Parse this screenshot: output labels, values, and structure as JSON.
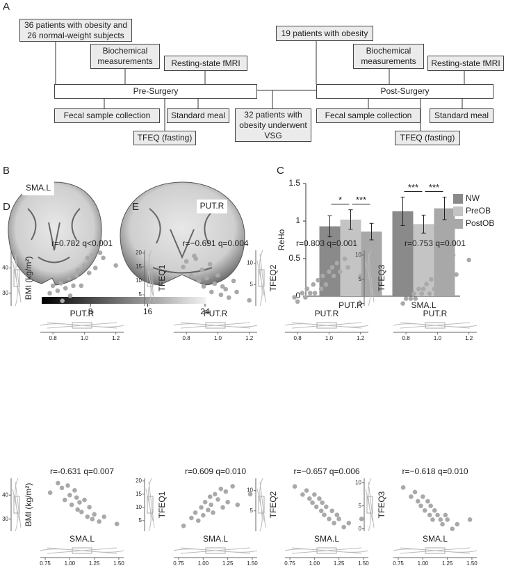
{
  "panel_labels": [
    "A",
    "B",
    "C",
    "D",
    "E"
  ],
  "diagram": {
    "nodes": [
      {
        "label": "36 patients with obesity and\n26 normal-weight subjects"
      },
      {
        "label": "Biochemical\nmeasurements"
      },
      {
        "label": "Resting-state fMRI"
      },
      {
        "label": "Pre-Surgery"
      },
      {
        "label": "Fecal sample collection"
      },
      {
        "label": "Standard meal"
      },
      {
        "label": "TFEQ (fasting)"
      },
      {
        "label": "32 patients with\nobesity underwent\nVSG"
      },
      {
        "label": "19 patients with obesity"
      },
      {
        "label": "Biochemical\nmeasurements"
      },
      {
        "label": "Resting-state fMRI"
      },
      {
        "label": "Post-Surgery"
      },
      {
        "label": "Fecal sample collection"
      },
      {
        "label": "TFEQ (fasting)"
      },
      {
        "label": "Standard meal"
      }
    ]
  },
  "brain": {
    "region_labels": [
      "SMA.L",
      "PUT.R"
    ],
    "colorbar": {
      "lim": [
        1.2,
        24.1
      ],
      "ticks": [
        8,
        16,
        24
      ]
    }
  },
  "chart_data": [
    {
      "type": "bar",
      "ylabel": "ReHo",
      "categories": [
        "PUT.R",
        "SMA.L"
      ],
      "series": [
        {
          "name": "NW",
          "color": "#8a8a8a",
          "values": [
            0.93,
            1.13
          ],
          "errors": [
            0.14,
            0.19
          ]
        },
        {
          "name": "PreOB",
          "color": "#c4c4c4",
          "values": [
            1.02,
            0.96
          ],
          "errors": [
            0.13,
            0.12
          ]
        },
        {
          "name": "PostOB",
          "color": "#a8a8a8",
          "values": [
            0.86,
            1.17
          ],
          "errors": [
            0.11,
            0.15
          ]
        }
      ],
      "ylim": [
        0,
        1.5
      ],
      "yticks": [
        0,
        0.5,
        1,
        1.5
      ],
      "annotations": [
        "*",
        "***",
        "***",
        "***"
      ],
      "legend": "right"
    },
    {
      "type": "scatter",
      "annotation": "r=0.782 q<0.001",
      "xlabel": "PUT.R",
      "ylabel": "BMI (kg/m²)",
      "color": "#a9a9a9",
      "x": [
        0.78,
        0.8,
        0.83,
        0.85,
        0.86,
        0.88,
        0.9,
        0.91,
        0.93,
        0.95,
        0.96,
        0.98,
        1.0,
        1.02,
        1.03,
        1.05,
        1.07,
        1.1,
        1.12,
        1.2
      ],
      "y": [
        30,
        33,
        31,
        34,
        27,
        32,
        36,
        29,
        33,
        37,
        39,
        33,
        41,
        44,
        38,
        45,
        40,
        46,
        44,
        41
      ],
      "xlim": [
        0.72,
        1.25
      ],
      "xticks": [
        0.8,
        {
          "value": 1,
          "label": "1.0"
        },
        1.2
      ],
      "ylim": [
        25,
        47
      ],
      "yticks": [
        30,
        40
      ]
    },
    {
      "type": "scatter",
      "annotation": "r=−0.691 q=0.004",
      "xlabel": "PUT.R",
      "ylabel": "TFEQ1",
      "color": "#a9a9a9",
      "x": [
        0.78,
        0.8,
        0.83,
        0.85,
        0.86,
        0.88,
        0.9,
        0.91,
        0.93,
        0.95,
        0.96,
        0.98,
        1.0,
        1.02,
        1.03,
        1.05,
        1.07,
        1.1,
        1.12,
        1.2
      ],
      "y": [
        15,
        17,
        12,
        19,
        18,
        10,
        14,
        8,
        11,
        16,
        6,
        9,
        12,
        5,
        8,
        7,
        4,
        10,
        6,
        3
      ],
      "xlim": [
        0.72,
        1.25
      ],
      "xticks": [
        0.8,
        {
          "value": 1,
          "label": "1.0"
        },
        1.2
      ],
      "ylim": [
        1,
        21
      ],
      "yticks": [
        5,
        10,
        15,
        20
      ]
    },
    {
      "type": "scatter",
      "annotation": "r=0.803 q=0.001",
      "xlabel": "PUT.R",
      "ylabel": "TFEQ2",
      "color": "#a9a9a9",
      "x": [
        0.78,
        0.8,
        0.83,
        0.85,
        0.86,
        0.88,
        0.9,
        0.91,
        0.93,
        0.95,
        0.96,
        0.98,
        1.0,
        1.02,
        1.03,
        1.05,
        1.07,
        1.1,
        1.12,
        1.2
      ],
      "y": [
        2,
        1,
        3,
        2,
        4,
        3,
        5,
        3,
        6,
        4,
        7,
        5,
        8,
        9,
        7,
        10,
        8,
        11,
        9,
        7
      ],
      "xlim": [
        0.72,
        1.25
      ],
      "xticks": [
        0.8,
        {
          "value": 1,
          "label": "1.0"
        },
        1.2
      ],
      "ylim": [
        0,
        13
      ],
      "yticks": [
        5,
        10
      ]
    },
    {
      "type": "scatter",
      "annotation": "r=0.753 q=0.001",
      "xlabel": "PUT.R",
      "ylabel": "TFEQ3",
      "color": "#a9a9a9",
      "x": [
        0.78,
        0.8,
        0.83,
        0.85,
        0.86,
        0.88,
        0.9,
        0.91,
        0.93,
        0.95,
        0.96,
        0.98,
        1.0,
        1.02,
        1.03,
        1.05,
        1.07,
        1.1,
        1.12,
        1.2
      ],
      "y": [
        0,
        1,
        1,
        2,
        1,
        3,
        2,
        3,
        4,
        2,
        5,
        3,
        6,
        5,
        7,
        4,
        8,
        10,
        6,
        9
      ],
      "xlim": [
        0.72,
        1.25
      ],
      "xticks": [
        0.8,
        {
          "value": 1,
          "label": "1.0"
        },
        1.2
      ],
      "ylim": [
        -0.5,
        11
      ],
      "yticks": [
        0,
        5,
        10
      ]
    },
    {
      "type": "scatter",
      "annotation": "r=-0.631 q=0.007",
      "xlabel": "SMA.L",
      "ylabel": "BMI (kg/m²)",
      "color": "#a9a9a9",
      "x": [
        0.8,
        0.88,
        0.92,
        0.95,
        0.98,
        1.0,
        1.02,
        1.05,
        1.07,
        1.08,
        1.1,
        1.12,
        1.15,
        1.18,
        1.2,
        1.23,
        1.25,
        1.3,
        1.35,
        1.48
      ],
      "y": [
        41,
        45,
        43,
        38,
        44,
        40,
        36,
        42,
        39,
        34,
        37,
        33,
        38,
        31,
        35,
        30,
        32,
        29,
        31,
        28
      ],
      "xlim": [
        0.7,
        1.55
      ],
      "xticks": [
        {
          "value": 0.75,
          "label": "0.75"
        },
        {
          "value": 1,
          "label": "1.00"
        },
        {
          "value": 1.25,
          "label": "1.25"
        },
        {
          "value": 1.5,
          "label": "1.50"
        }
      ],
      "ylim": [
        25,
        47
      ],
      "yticks": [
        30,
        40
      ]
    },
    {
      "type": "scatter",
      "annotation": "r=0.609 q=0.010",
      "xlabel": "SMA.L",
      "ylabel": "TFEQ1",
      "color": "#a9a9a9",
      "x": [
        0.8,
        0.88,
        0.92,
        0.95,
        0.98,
        1.0,
        1.02,
        1.05,
        1.07,
        1.08,
        1.1,
        1.12,
        1.15,
        1.18,
        1.2,
        1.23,
        1.25,
        1.3,
        1.35,
        1.48
      ],
      "y": [
        3,
        6,
        8,
        5,
        10,
        7,
        12,
        9,
        14,
        11,
        8,
        15,
        13,
        17,
        10,
        16,
        12,
        18,
        11,
        15
      ],
      "xlim": [
        0.7,
        1.55
      ],
      "xticks": [
        {
          "value": 0.75,
          "label": "0.75"
        },
        {
          "value": 1,
          "label": "1.00"
        },
        {
          "value": 1.25,
          "label": "1.25"
        },
        {
          "value": 1.5,
          "label": "1.50"
        }
      ],
      "ylim": [
        1,
        21
      ],
      "yticks": [
        5,
        10,
        15,
        20
      ]
    },
    {
      "type": "scatter",
      "annotation": "r=−0.657 q=0.006",
      "xlabel": "SMA.L",
      "ylabel": "TFEQ2",
      "color": "#a9a9a9",
      "x": [
        0.8,
        0.88,
        0.92,
        0.95,
        0.98,
        1.0,
        1.02,
        1.05,
        1.07,
        1.08,
        1.1,
        1.12,
        1.15,
        1.18,
        1.2,
        1.23,
        1.25,
        1.3,
        1.35,
        1.48
      ],
      "y": [
        11,
        9,
        10,
        8,
        7,
        9,
        6,
        8,
        5,
        7,
        4,
        6,
        3,
        5,
        2,
        4,
        3,
        1,
        2,
        3
      ],
      "xlim": [
        0.7,
        1.55
      ],
      "xticks": [
        {
          "value": 0.75,
          "label": "0.75"
        },
        {
          "value": 1,
          "label": "1.00"
        },
        {
          "value": 1.25,
          "label": "1.25"
        },
        {
          "value": 1.5,
          "label": "1.50"
        }
      ],
      "ylim": [
        0,
        13
      ],
      "yticks": [
        5,
        10
      ]
    },
    {
      "type": "scatter",
      "annotation": "r=−0.618 q=0.010",
      "xlabel": "SMA.L",
      "ylabel": "TFEQ3",
      "color": "#a9a9a9",
      "x": [
        0.8,
        0.88,
        0.92,
        0.95,
        0.98,
        1.0,
        1.02,
        1.05,
        1.07,
        1.08,
        1.1,
        1.12,
        1.15,
        1.18,
        1.2,
        1.23,
        1.25,
        1.3,
        1.35,
        1.48
      ],
      "y": [
        9,
        7,
        8,
        6,
        5,
        7,
        4,
        6,
        3,
        5,
        2,
        4,
        3,
        2,
        1,
        3,
        2,
        0,
        1,
        2
      ],
      "xlim": [
        0.7,
        1.55
      ],
      "xticks": [
        {
          "value": 0.75,
          "label": "0.75"
        },
        {
          "value": 1,
          "label": "1.00"
        },
        {
          "value": 1.25,
          "label": "1.25"
        },
        {
          "value": 1.5,
          "label": "1.50"
        }
      ],
      "ylim": [
        -0.5,
        11
      ],
      "yticks": [
        0,
        5,
        10
      ]
    }
  ]
}
